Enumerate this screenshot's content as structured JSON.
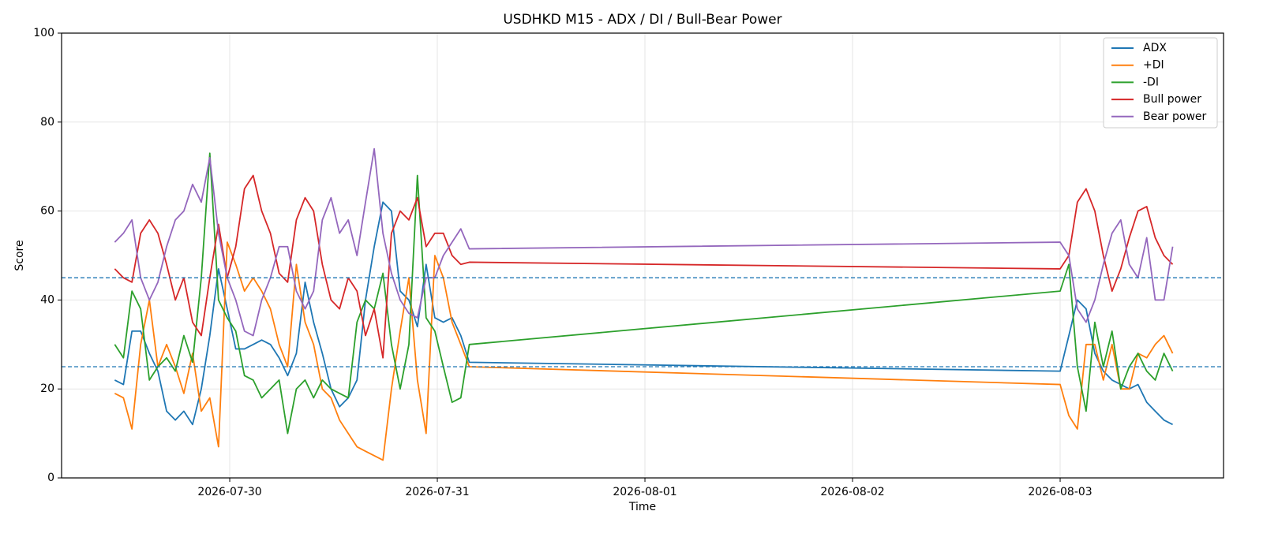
{
  "chart_data": {
    "type": "line",
    "title": "USDHKD M15 - ADX / DI / Bull-Bear Power",
    "x_label": "Time",
    "y_label": "Score",
    "x": [
      -0.554,
      -0.512,
      -0.471,
      -0.429,
      -0.387,
      -0.346,
      -0.304,
      -0.262,
      -0.221,
      -0.179,
      -0.137,
      -0.096,
      -0.054,
      -0.012,
      0.029,
      0.071,
      0.113,
      0.154,
      0.196,
      0.238,
      0.279,
      0.321,
      0.363,
      0.404,
      0.446,
      0.488,
      0.529,
      0.571,
      0.613,
      0.654,
      0.696,
      0.738,
      0.779,
      0.821,
      0.863,
      0.904,
      0.946,
      0.988,
      1.029,
      1.071,
      1.113,
      1.154,
      4.0,
      4.042,
      4.083,
      4.125,
      4.167,
      4.208,
      4.25,
      4.292,
      4.333,
      4.375,
      4.417,
      4.458,
      4.5,
      4.542
    ],
    "series": [
      {
        "name": "ADX",
        "color": "#1f77b4",
        "values": [
          22,
          21,
          33,
          33,
          28,
          24,
          15,
          13,
          15,
          12,
          20,
          32,
          47,
          38,
          29,
          29,
          30,
          31,
          30,
          27,
          23,
          28,
          44,
          35,
          28,
          20,
          16,
          18,
          22,
          40,
          52,
          62,
          60,
          42,
          40,
          34,
          48,
          36,
          35,
          36,
          32,
          26,
          24,
          32,
          40,
          38,
          28,
          24,
          22,
          21,
          20,
          21,
          17,
          15,
          13,
          12
        ]
      },
      {
        "name": "+DI",
        "color": "#ff7f0e",
        "values": [
          19,
          18,
          11,
          30,
          40,
          25,
          30,
          25,
          19,
          28,
          15,
          18,
          7,
          53,
          48,
          42,
          45,
          42,
          38,
          30,
          25,
          48,
          35,
          30,
          20,
          18,
          13,
          10,
          7,
          6,
          5,
          4,
          20,
          33,
          45,
          22,
          10,
          50,
          45,
          35,
          30,
          25,
          21,
          14,
          11,
          30,
          30,
          22,
          30,
          20,
          20,
          28,
          27,
          30,
          32,
          28
        ]
      },
      {
        "name": "-DI",
        "color": "#2ca02c",
        "values": [
          30,
          27,
          42,
          38,
          22,
          25,
          27,
          24,
          32,
          26,
          45,
          73,
          40,
          36,
          33,
          23,
          22,
          18,
          20,
          22,
          10,
          20,
          22,
          18,
          22,
          20,
          19,
          18,
          35,
          40,
          38,
          46,
          30,
          20,
          30,
          68,
          36,
          33,
          25,
          17,
          18,
          30,
          42,
          48,
          25,
          15,
          35,
          25,
          33,
          20,
          25,
          28,
          24,
          22,
          28,
          24
        ]
      },
      {
        "name": "Bull power",
        "color": "#d62728",
        "values": [
          47,
          45,
          44,
          55,
          58,
          55,
          48,
          40,
          45,
          35,
          32,
          45,
          57,
          45,
          52,
          65,
          68,
          60,
          55,
          46,
          44,
          58,
          63,
          60,
          48,
          40,
          38,
          45,
          42,
          32,
          38,
          27,
          55,
          60,
          58,
          63,
          52,
          55,
          55,
          50,
          48,
          48.5,
          47,
          50,
          62,
          65,
          60,
          50,
          42,
          47,
          54,
          60,
          61,
          54,
          50,
          48
        ]
      },
      {
        "name": "Bear power",
        "color": "#9467bd",
        "values": [
          53,
          55,
          58,
          45,
          40,
          44,
          52,
          58,
          60,
          66,
          62,
          72,
          55,
          45,
          40,
          33,
          32,
          40,
          45,
          52,
          52,
          42,
          38,
          42,
          58,
          63,
          55,
          58,
          50,
          62,
          74,
          55,
          46,
          40,
          37,
          36,
          45,
          45,
          50,
          53,
          56,
          51.5,
          53,
          50,
          38,
          35,
          40,
          48,
          55,
          58,
          48,
          45,
          54,
          40,
          40,
          52
        ]
      }
    ],
    "reference_lines": [
      45,
      25
    ],
    "xlim": [
      -0.81,
      4.787
    ],
    "ylim": [
      0,
      100
    ],
    "xticks": [
      {
        "value": 0,
        "label": "2026-07-30"
      },
      {
        "value": 1,
        "label": "2026-07-31"
      },
      {
        "value": 2,
        "label": "2026-08-01"
      },
      {
        "value": 3,
        "label": "2026-08-02"
      },
      {
        "value": 4,
        "label": "2026-08-03"
      }
    ],
    "yticks": [
      0,
      20,
      40,
      60,
      80,
      100
    ],
    "grid": true,
    "legend": "upper-right"
  }
}
